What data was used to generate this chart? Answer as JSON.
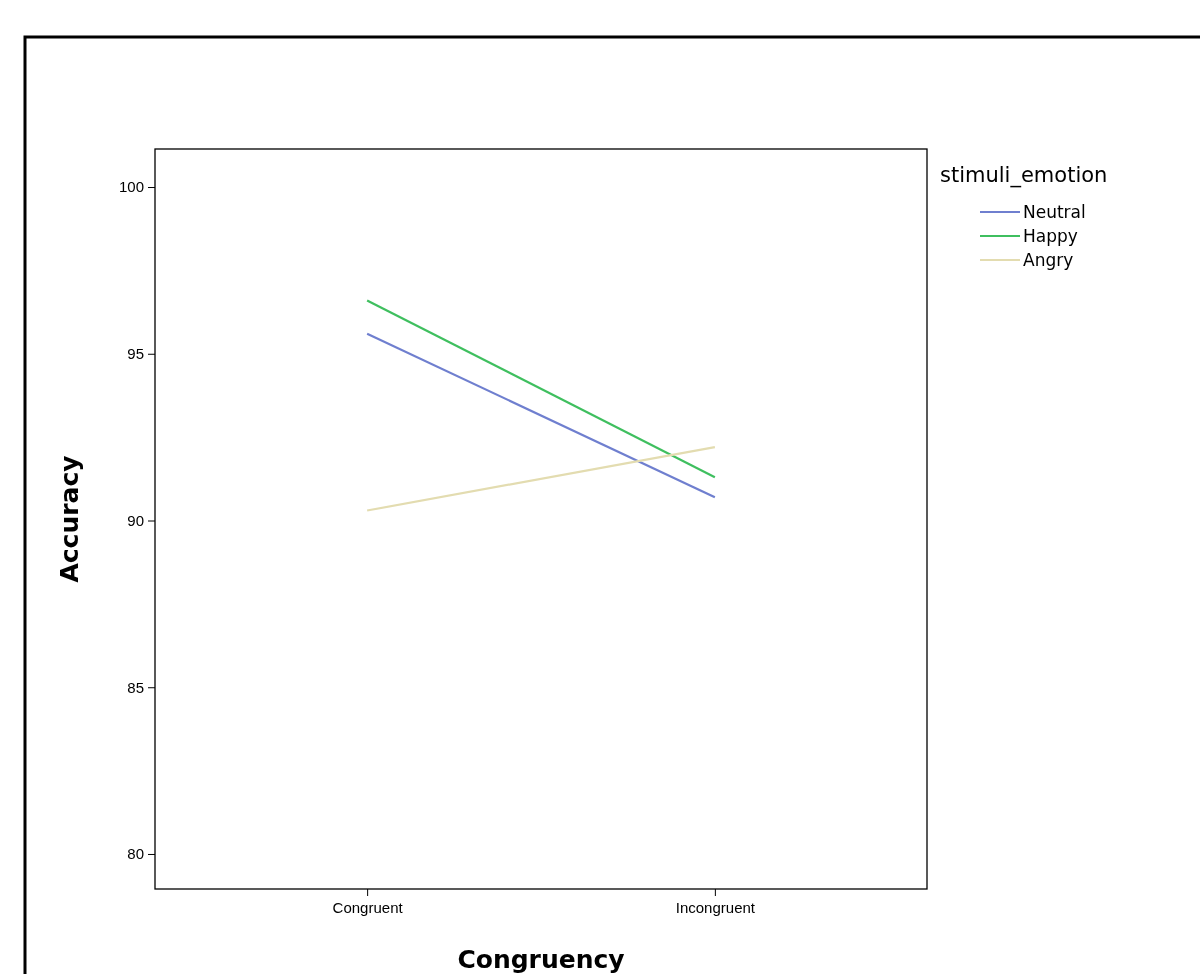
{
  "chart_data": {
    "type": "line",
    "xlabel": "Congruency",
    "ylabel": "Accuracy",
    "legend_title": "stimuli_emotion",
    "categories": [
      "Congruent",
      "Incongruent"
    ],
    "series": [
      {
        "name": "Neutral",
        "color": "#6f7fcf",
        "values": [
          95.6,
          90.7
        ]
      },
      {
        "name": "Happy",
        "color": "#3fbf5f",
        "values": [
          96.6,
          91.3
        ]
      },
      {
        "name": "Angry",
        "color": "#e3dcb0",
        "values": [
          90.3,
          92.2
        ]
      }
    ],
    "ylim": [
      78.95,
      101.14
    ],
    "yticks": [
      80,
      85,
      90,
      95,
      100
    ],
    "grid": false,
    "legend": "top right",
    "marker": "none",
    "line_style": "solid"
  }
}
